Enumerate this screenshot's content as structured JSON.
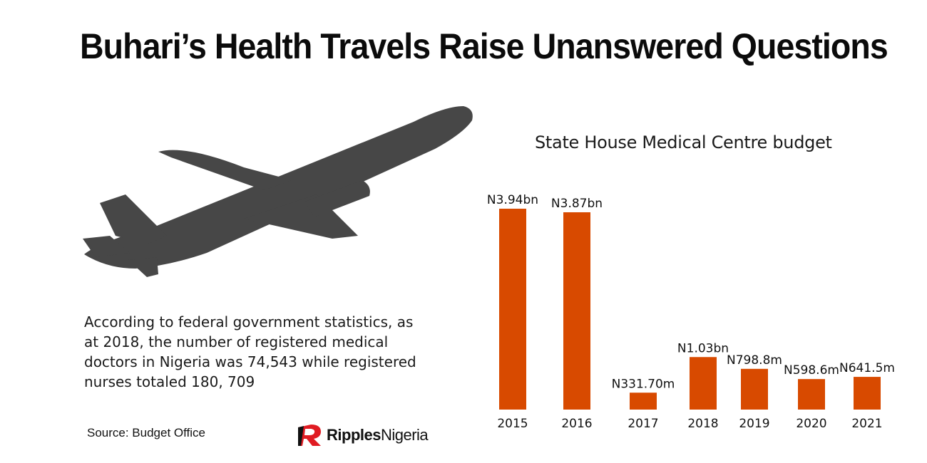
{
  "headline": "Buhari’s Health Travels Raise Unanswered Questions",
  "icons": {
    "illustration": "airplane-icon",
    "logo": "ripples-logo-icon"
  },
  "colors": {
    "bar": "#d84a00",
    "plane": "#474747",
    "logo_red": "#e01b22"
  },
  "note": " According to federal government statistics, as at 2018, the number of registered medical doctors in Nigeria was 74,543 while registered nurses totaled 180, 709",
  "source": "Source: Budget Office",
  "brand": {
    "bold": "Ripples",
    "regular": "Nigeria"
  },
  "chart_data": {
    "type": "bar",
    "title": "State House Medical Centre budget",
    "categories": [
      "2015",
      "2016",
      "2017",
      "2018",
      "2019",
      "2020",
      "2021"
    ],
    "values": [
      3.94,
      3.87,
      0.3317,
      1.03,
      0.7988,
      0.5986,
      0.6415
    ],
    "unit": "N billion",
    "labels": [
      "N3.94bn",
      "N3.87bn",
      "N331.70m",
      "N1.03bn",
      "N798.8m",
      "N598.6m",
      "N641.5m"
    ],
    "xlabel": "",
    "ylabel": "",
    "grid": false,
    "legend": "none"
  }
}
